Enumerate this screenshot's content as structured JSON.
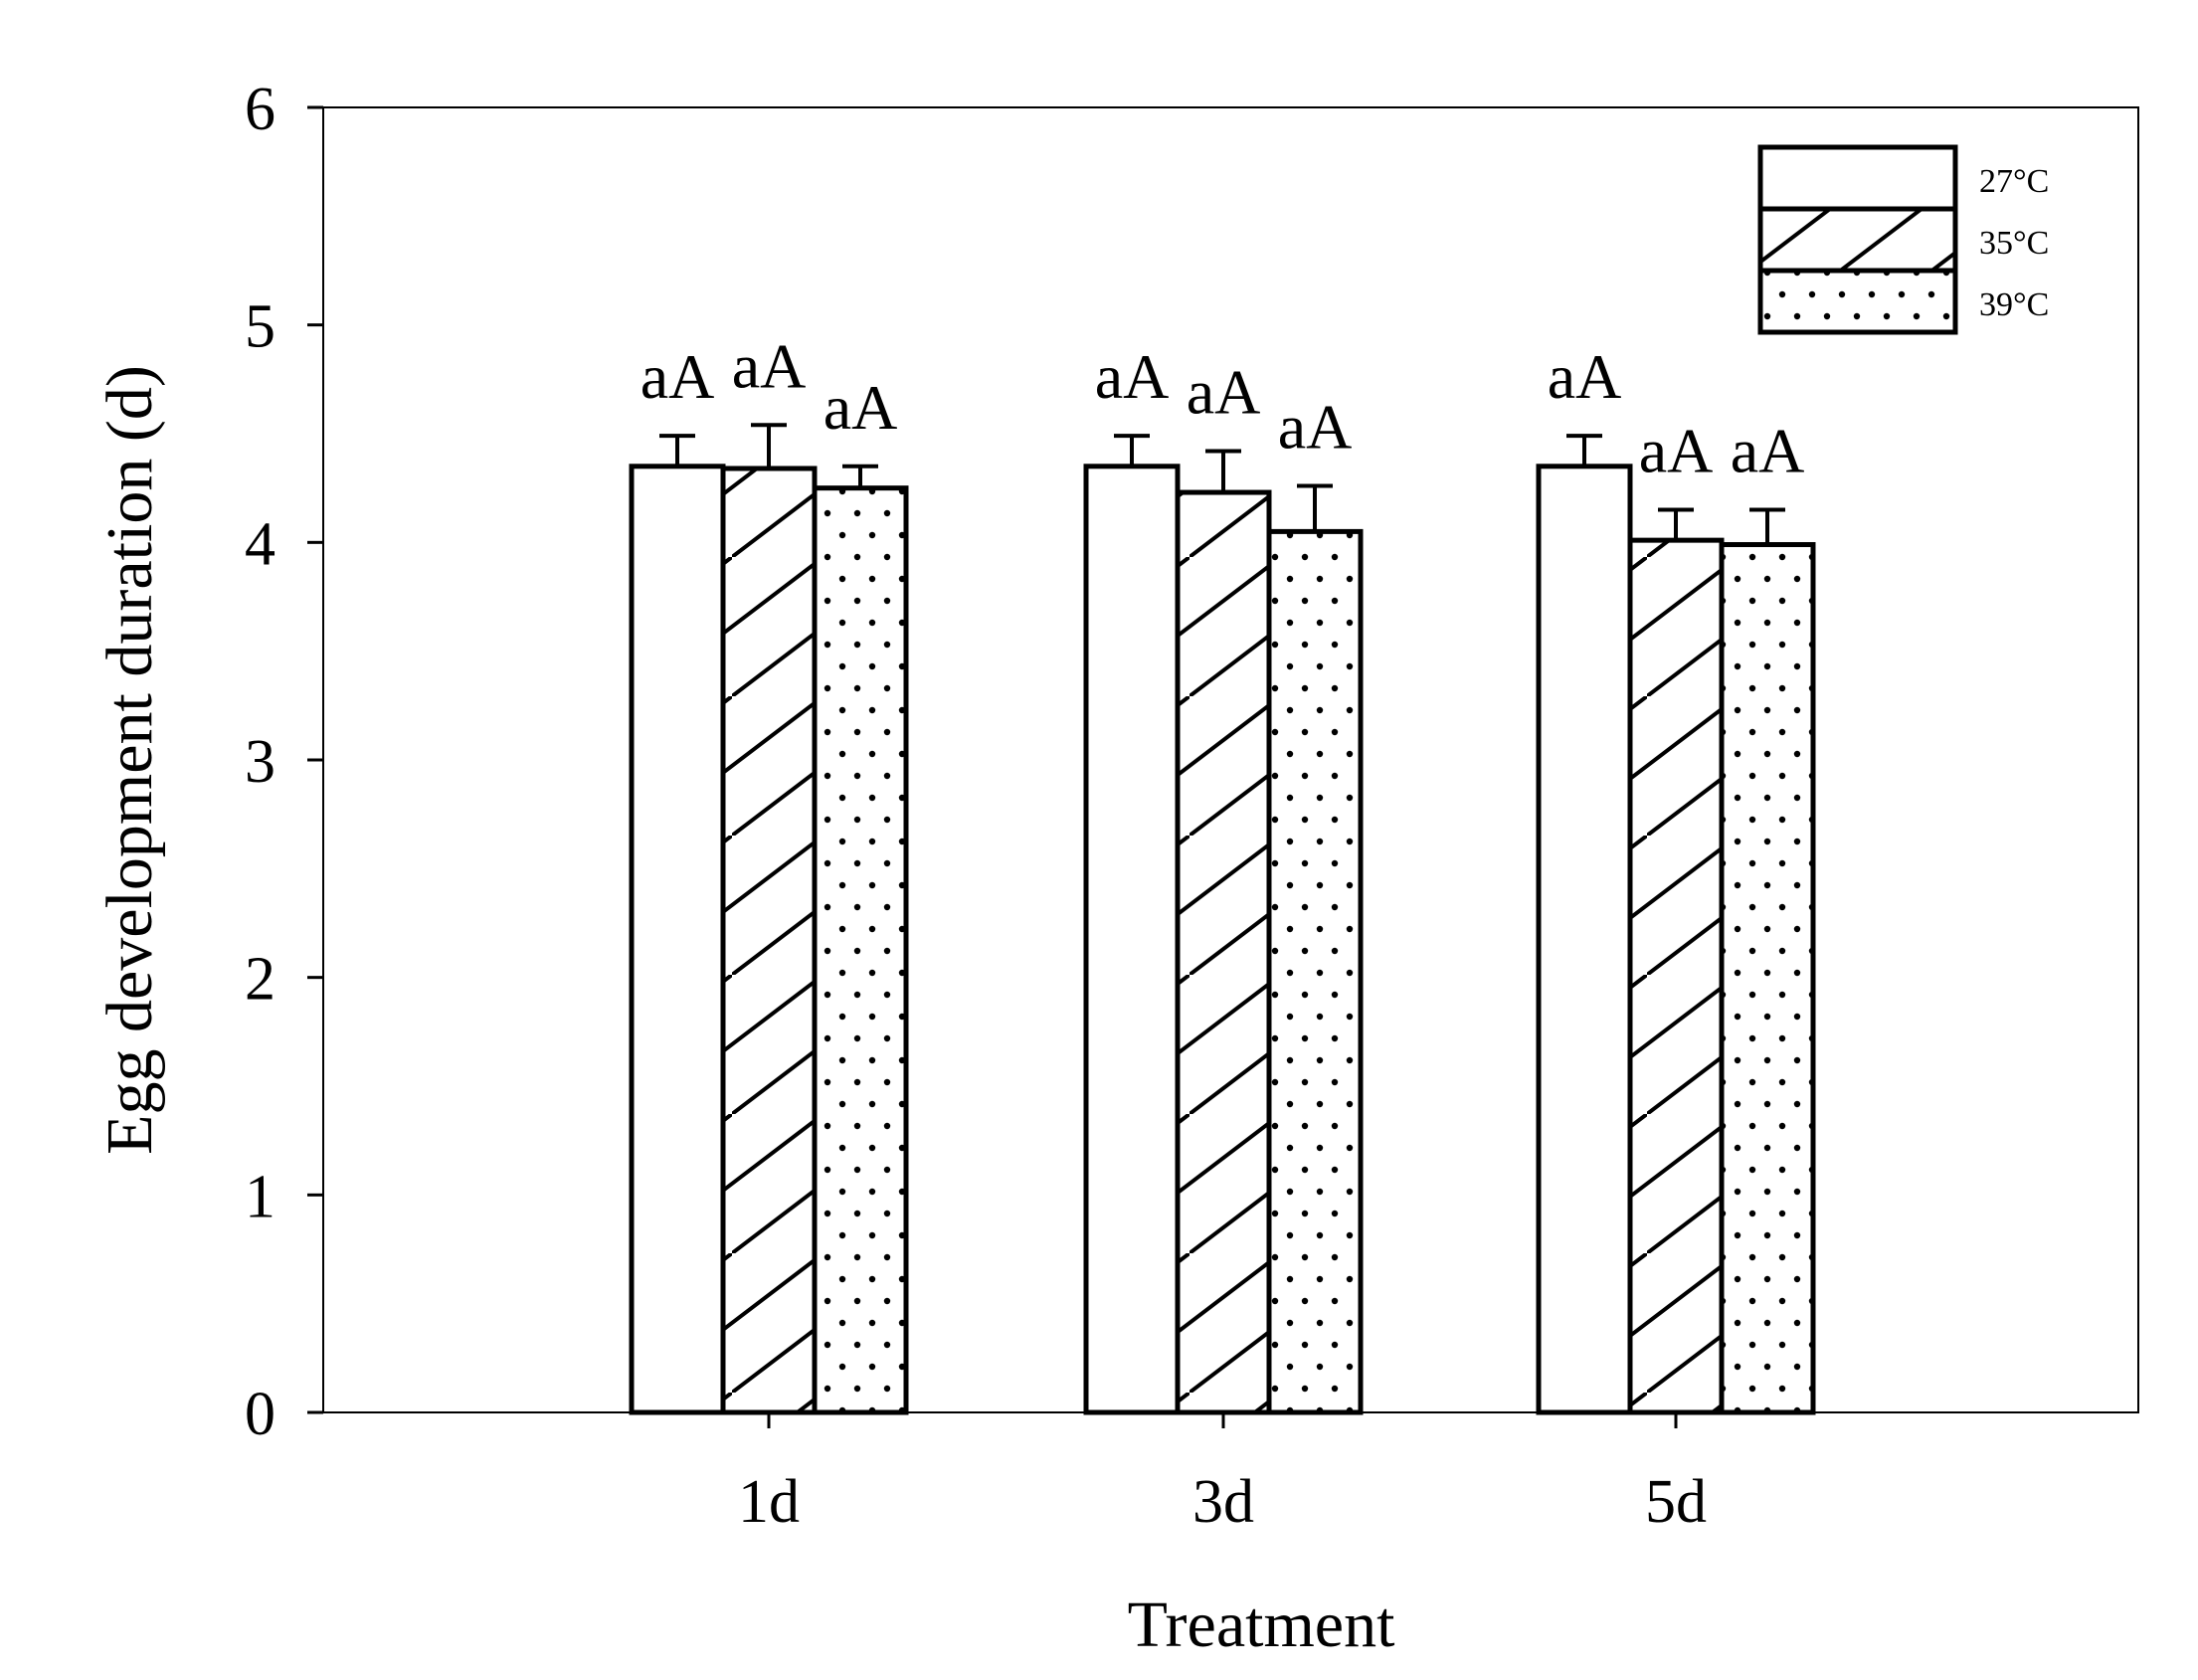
{
  "chart_data": {
    "type": "bar",
    "title": "",
    "xlabel": "Treatment",
    "ylabel": "Egg development duration (d)",
    "categories": [
      "1d",
      "3d",
      "5d"
    ],
    "ylim": [
      0,
      6
    ],
    "yticks": [
      "0",
      "1",
      "2",
      "3",
      "4",
      "5",
      "6"
    ],
    "grid": false,
    "legend_position": "top-right",
    "series": [
      {
        "name": "27°C",
        "pattern": "none",
        "values": [
          4.35,
          4.35,
          4.35
        ],
        "errors": [
          0.14,
          0.14,
          0.14
        ],
        "labels": [
          "aA",
          "aA",
          "aA"
        ]
      },
      {
        "name": "35°C",
        "pattern": "diagonal",
        "values": [
          4.34,
          4.23,
          4.01
        ],
        "errors": [
          0.2,
          0.19,
          0.14
        ],
        "labels": [
          "aA",
          "aA",
          "aA"
        ]
      },
      {
        "name": "39°C",
        "pattern": "dots",
        "values": [
          4.25,
          4.05,
          3.99
        ],
        "errors": [
          0.1,
          0.21,
          0.16
        ],
        "labels": [
          "aA",
          "aA",
          "aA"
        ]
      }
    ]
  },
  "colors": {
    "stroke": "#000000",
    "fill": "#ffffff"
  }
}
